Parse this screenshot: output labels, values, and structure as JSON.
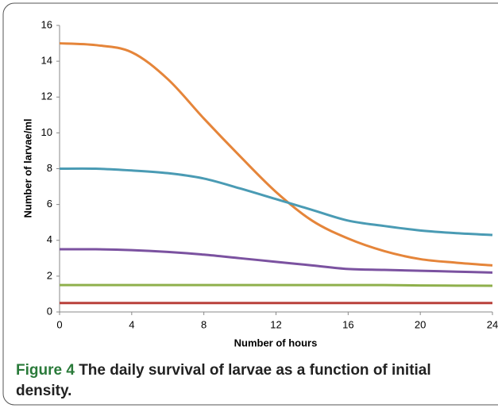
{
  "chart_data": {
    "type": "line",
    "x_label": "Number of hours",
    "y_label": "Number of larvae/ml",
    "caption_label": "Figure 4",
    "caption_text": "The daily survival of larvae as a function of initial density.",
    "x": [
      0,
      2,
      4,
      6,
      8,
      10,
      12,
      14,
      16,
      18,
      20,
      22,
      24
    ],
    "series": [
      {
        "color": "#e5853a",
        "values": [
          15,
          14.9,
          14.5,
          13,
          10.8,
          8.7,
          6.7,
          5.1,
          4.1,
          3.4,
          2.95,
          2.75,
          2.6
        ]
      },
      {
        "color": "#4a9bb4",
        "values": [
          8,
          8,
          7.9,
          7.75,
          7.45,
          6.9,
          6.3,
          5.7,
          5.1,
          4.8,
          4.55,
          4.4,
          4.3
        ]
      },
      {
        "color": "#7b52a0",
        "values": [
          3.5,
          3.5,
          3.45,
          3.35,
          3.2,
          3.0,
          2.8,
          2.6,
          2.4,
          2.35,
          2.3,
          2.25,
          2.2
        ]
      },
      {
        "color": "#8fb04c",
        "values": [
          1.5,
          1.5,
          1.5,
          1.5,
          1.5,
          1.5,
          1.5,
          1.5,
          1.5,
          1.5,
          1.48,
          1.47,
          1.46
        ]
      },
      {
        "color": "#b9413b",
        "values": [
          0.5,
          0.5,
          0.5,
          0.5,
          0.5,
          0.5,
          0.5,
          0.5,
          0.5,
          0.5,
          0.5,
          0.5,
          0.5
        ]
      }
    ],
    "xlim": [
      0,
      24
    ],
    "xticks": [
      0,
      4,
      8,
      12,
      16,
      20,
      24
    ],
    "ylim": [
      0,
      16
    ],
    "yticks": [
      0,
      2,
      4,
      6,
      8,
      10,
      12,
      14,
      16
    ],
    "grid": false
  }
}
